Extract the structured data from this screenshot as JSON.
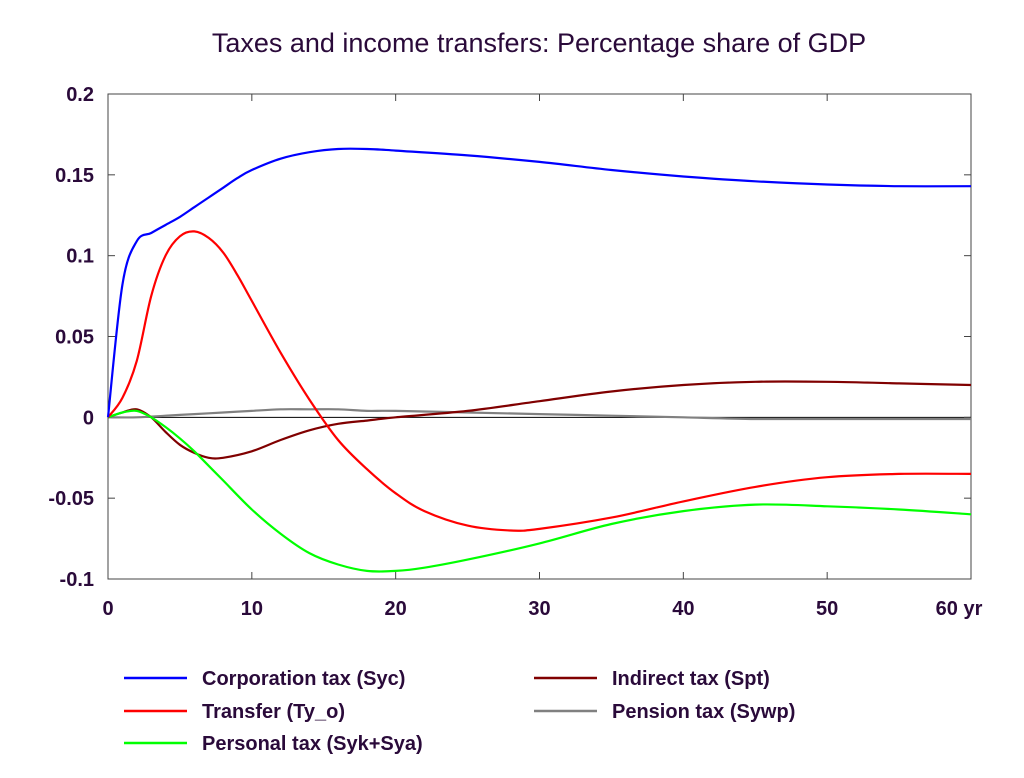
{
  "chart_data": {
    "type": "line",
    "title": "Taxes and income transfers: Percentage share of GDP",
    "xlim": [
      0,
      60
    ],
    "ylim": [
      -0.1,
      0.2
    ],
    "x_ticks": [
      0,
      10,
      20,
      30,
      40,
      50,
      60
    ],
    "x_tick_labels": [
      "0",
      "10",
      "20",
      "30",
      "40",
      "50",
      "60 yr"
    ],
    "y_ticks": [
      0.2,
      0.15,
      0.1,
      0.05,
      0,
      -0.05,
      -0.1
    ],
    "y_tick_labels": [
      "0.2",
      "0.15",
      "0.1",
      "0.05",
      "0",
      "-0.05",
      "-0.1"
    ],
    "grid": false,
    "zero_line": true,
    "legend_position": "bottom",
    "series": [
      {
        "name": "Corporation tax (Syc)",
        "color": "#0000ff",
        "x": [
          0,
          1,
          2,
          3,
          4,
          5,
          6,
          7,
          8,
          9,
          10,
          12,
          14,
          16,
          18,
          20,
          25,
          30,
          35,
          40,
          45,
          50,
          55,
          60
        ],
        "y": [
          0,
          0.082,
          0.109,
          0.114,
          0.119,
          0.124,
          0.13,
          0.136,
          0.142,
          0.148,
          0.153,
          0.16,
          0.164,
          0.166,
          0.166,
          0.165,
          0.162,
          0.158,
          0.153,
          0.149,
          0.146,
          0.144,
          0.143,
          0.143
        ]
      },
      {
        "name": "Transfer (Ty_o)",
        "color": "#ff0000",
        "x": [
          0,
          1,
          2,
          3,
          4,
          5,
          6,
          7,
          8,
          9,
          10,
          12,
          14,
          16,
          18,
          20,
          22,
          25,
          28,
          30,
          35,
          40,
          45,
          50,
          55,
          60
        ],
        "y": [
          0,
          0.012,
          0.035,
          0.075,
          0.1,
          0.112,
          0.115,
          0.111,
          0.102,
          0.088,
          0.072,
          0.04,
          0.011,
          -0.014,
          -0.032,
          -0.047,
          -0.058,
          -0.067,
          -0.07,
          -0.069,
          -0.062,
          -0.052,
          -0.043,
          -0.037,
          -0.035,
          -0.035
        ]
      },
      {
        "name": "Personal tax (Syk+Sya)",
        "color": "#00ff00",
        "x": [
          0,
          1,
          2,
          3,
          4,
          5,
          6,
          7,
          8,
          10,
          12,
          14,
          16,
          18,
          20,
          22,
          25,
          30,
          35,
          40,
          45,
          50,
          55,
          60
        ],
        "y": [
          0,
          0.003,
          0.004,
          0.0,
          -0.006,
          -0.013,
          -0.021,
          -0.03,
          -0.039,
          -0.057,
          -0.072,
          -0.084,
          -0.091,
          -0.095,
          -0.095,
          -0.093,
          -0.088,
          -0.078,
          -0.066,
          -0.058,
          -0.054,
          -0.055,
          -0.057,
          -0.06
        ]
      },
      {
        "name": "Indirect tax (Spt)",
        "color": "#800000",
        "x": [
          0,
          1,
          2,
          3,
          4,
          5,
          6,
          7,
          8,
          10,
          12,
          14,
          16,
          18,
          20,
          25,
          30,
          35,
          40,
          45,
          50,
          55,
          60
        ],
        "y": [
          0,
          0.003,
          0.005,
          0.0,
          -0.009,
          -0.017,
          -0.022,
          -0.025,
          -0.025,
          -0.021,
          -0.014,
          -0.008,
          -0.004,
          -0.002,
          0.0,
          0.004,
          0.01,
          0.016,
          0.02,
          0.022,
          0.022,
          0.021,
          0.02
        ]
      },
      {
        "name": "Pension tax (Sywp)",
        "color": "#808080",
        "x": [
          0,
          2,
          4,
          6,
          8,
          10,
          12,
          14,
          16,
          18,
          20,
          25,
          30,
          35,
          40,
          45,
          50,
          55,
          60
        ],
        "y": [
          0,
          0.0,
          0.001,
          0.002,
          0.003,
          0.004,
          0.005,
          0.005,
          0.005,
          0.004,
          0.004,
          0.003,
          0.002,
          0.001,
          0.0,
          -0.001,
          -0.001,
          -0.001,
          -0.001
        ]
      }
    ],
    "legend_order": [
      0,
      1,
      2,
      3,
      4
    ]
  }
}
